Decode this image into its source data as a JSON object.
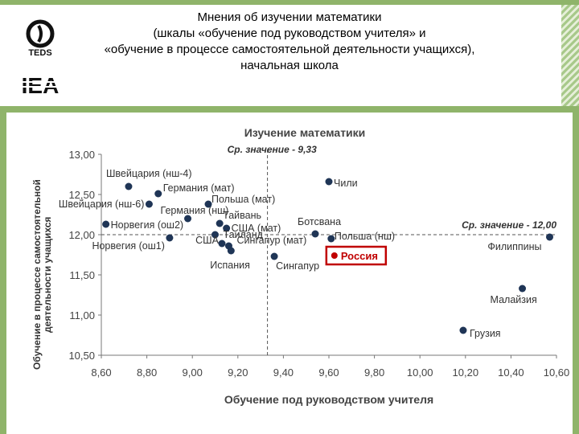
{
  "header": {
    "title": "Мнения об изучении математики",
    "subtitle_line1": "(шкалы «обучение под руководством учителя» и",
    "subtitle_line2": "«обучение в процессе самостоятельной деятельности учащихся),",
    "subtitle_line3": "начальная школа",
    "logo_teds": "TEDS",
    "logo_iea": "IEA"
  },
  "colors": {
    "frame": "#8fb46a",
    "point": "#1f3556",
    "highlight": "#c00000"
  },
  "chart_data": {
    "type": "scatter",
    "title": "Изучение математики",
    "xlabel": "Обучение под руководством учителя",
    "ylabel": "Обучение в процессе самостоятельной деятельности учащихся",
    "xlim": [
      8.6,
      10.6
    ],
    "ylim": [
      10.5,
      13.0
    ],
    "xticks": [
      "8,60",
      "8,80",
      "9,00",
      "9,20",
      "9,40",
      "9,60",
      "9,80",
      "10,00",
      "10,20",
      "10,40",
      "10,60"
    ],
    "yticks": [
      "10,50",
      "11,00",
      "11,50",
      "12,00",
      "12,50",
      "13,00"
    ],
    "mean_x": 9.33,
    "mean_x_label": "Ср. значение - 9,33",
    "mean_y": 12.0,
    "mean_y_label": "Ср. значение - 12,00",
    "grid": false,
    "points": [
      {
        "label": "Швейцария (нш-4)",
        "x": 8.72,
        "y": 12.6
      },
      {
        "label": "Германия (мат)",
        "x": 8.85,
        "y": 12.51
      },
      {
        "label": "Швейцария (нш-6)",
        "x": 8.81,
        "y": 12.38
      },
      {
        "label": "Германия (нш)",
        "x": 8.98,
        "y": 12.2
      },
      {
        "label": "Польша (мат)",
        "x": 9.07,
        "y": 12.38
      },
      {
        "label": "Тайвань",
        "x": 9.12,
        "y": 12.14
      },
      {
        "label": "США (мат)",
        "x": 9.15,
        "y": 12.08
      },
      {
        "label": "Норвегия (ош2)",
        "x": 8.62,
        "y": 12.13
      },
      {
        "label": "Норвегия (ош1)",
        "x": 8.9,
        "y": 11.96
      },
      {
        "label": "Таиланд",
        "x": 9.1,
        "y": 12.0
      },
      {
        "label": "США",
        "x": 9.13,
        "y": 11.89
      },
      {
        "label": "Сингапур (мат)",
        "x": 9.16,
        "y": 11.86
      },
      {
        "label": "Испания",
        "x": 9.17,
        "y": 11.8
      },
      {
        "label": "Сингапур",
        "x": 9.36,
        "y": 11.73
      },
      {
        "label": "Чили",
        "x": 9.6,
        "y": 12.66
      },
      {
        "label": "Ботсвана",
        "x": 9.54,
        "y": 12.01
      },
      {
        "label": "Польша (нш)",
        "x": 9.61,
        "y": 11.95
      },
      {
        "label": "Россия",
        "x": 9.61,
        "y": 11.86,
        "highlight": true
      },
      {
        "label": "Филиппины",
        "x": 10.57,
        "y": 11.97
      },
      {
        "label": "Малайзия",
        "x": 10.45,
        "y": 11.33
      },
      {
        "label": "Грузия",
        "x": 10.19,
        "y": 10.81
      }
    ]
  }
}
